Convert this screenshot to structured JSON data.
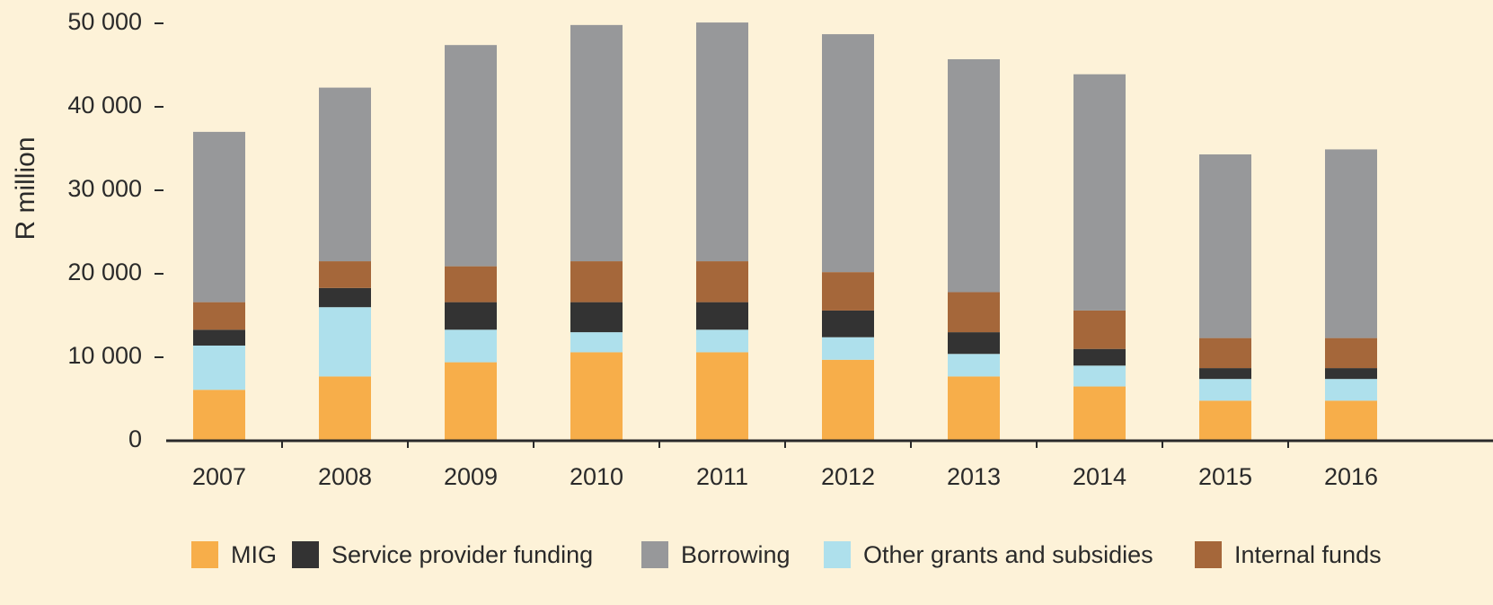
{
  "chart_data": {
    "type": "bar",
    "stacked": true,
    "y_label": "R million",
    "categories": [
      "2007",
      "2008",
      "2009",
      "2010",
      "2011",
      "2012",
      "2013",
      "2014",
      "2015",
      "2016"
    ],
    "series": [
      {
        "name": "MIG",
        "color": "#f7ae4a",
        "values": [
          6100,
          7700,
          9400,
          10600,
          10600,
          9700,
          7700,
          6500,
          4800,
          4800
        ]
      },
      {
        "name": "Other grants and subsidies",
        "color": "#aee0ec",
        "values": [
          5300,
          8300,
          3900,
          2400,
          2700,
          2700,
          2700,
          2500,
          2600,
          2600
        ]
      },
      {
        "name": "Service provider funding",
        "color": "#333333",
        "values": [
          1900,
          2300,
          3300,
          3600,
          3300,
          3200,
          2600,
          2000,
          1300,
          1300
        ]
      },
      {
        "name": "Internal funds",
        "color": "#a5673a",
        "values": [
          3300,
          3200,
          4300,
          4900,
          4900,
          4600,
          4800,
          4600,
          3600,
          3600
        ]
      },
      {
        "name": "Borrowing",
        "color": "#97989a",
        "values": [
          20400,
          20800,
          26500,
          28300,
          28600,
          28500,
          27900,
          28300,
          22000,
          22600
        ]
      }
    ],
    "ylim": [
      0,
      50000
    ],
    "yticks": [
      0,
      {
        "value": 10000,
        "label": "10 000"
      },
      {
        "value": 20000,
        "label": "20 000"
      },
      {
        "value": 30000,
        "label": "30 000"
      },
      {
        "value": 40000,
        "label": "40 000"
      },
      {
        "value": 50000,
        "label": "50 000"
      }
    ],
    "legend": "bottom"
  }
}
